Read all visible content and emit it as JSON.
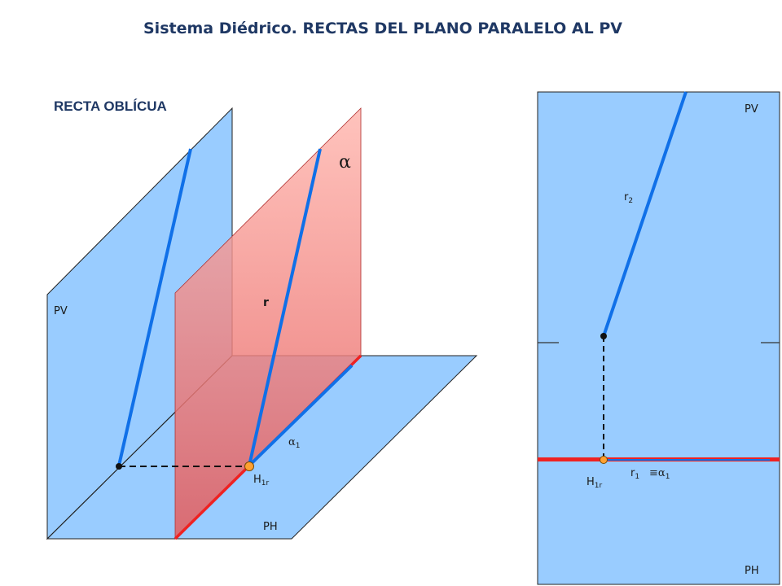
{
  "title": "Sistema Diédrico. RECTAS DEL PLANO  PARALELO AL PV",
  "subtitle": "RECTA OBLÍCUA",
  "colors": {
    "plane_blue": "#99ccff",
    "plane_red": "#ff9a8c",
    "line_blue": "#1070e8",
    "line_red": "#ee2222",
    "point_orange": "#ffa030"
  },
  "left": {
    "pv_label": "PV",
    "ph_label": "PH",
    "alpha_label": "α",
    "r_label": "r",
    "alpha1_label": "α",
    "alpha1_sub": "1",
    "h1r_label": "H",
    "h1r_sub": "1r"
  },
  "right": {
    "pv_label": "PV",
    "ph_label": "PH",
    "r2_label": "r",
    "r2_sub": "2",
    "r1_label": "r",
    "r1_sub": "1",
    "equiv": "≡",
    "alpha1_label": "α",
    "alpha1_sub": "1",
    "h1r_label": "H",
    "h1r_sub": "1r"
  }
}
